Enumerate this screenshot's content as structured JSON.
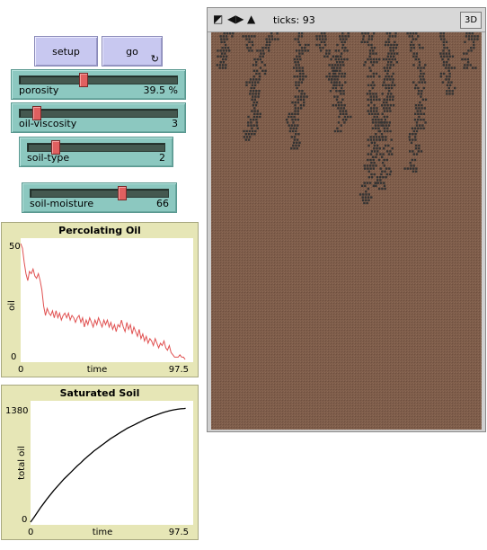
{
  "buttons": {
    "setup_label": "setup",
    "go_label": "go"
  },
  "sliders": [
    {
      "name": "porosity",
      "value_text": "39.5 %",
      "fraction": 0.4
    },
    {
      "name": "oil-viscosity",
      "value_text": "3",
      "fraction": 0.1
    },
    {
      "name": "soil-type",
      "value_text": "2",
      "fraction": 0.2
    },
    {
      "name": "soil-moisture",
      "value_text": "66",
      "fraction": 0.66
    }
  ],
  "plot1": {
    "title": "Percolating Oil",
    "ylabel": "oil",
    "xlabel": "time",
    "x_min_label": "0",
    "x_max_label": "97.5",
    "y_min_label": "0",
    "y_max_label": "50",
    "color": "#e05050"
  },
  "plot2": {
    "title": "Saturated Soil",
    "ylabel": "total oil",
    "xlabel": "time",
    "x_min_label": "0",
    "x_max_label": "97.5",
    "y_min_label": "0",
    "y_max_label": "1380",
    "color": "#000000"
  },
  "world": {
    "ticks_text": "ticks: 93",
    "btn_3d": "3D",
    "icons": [
      "resize-icon",
      "arrows-horizontal-icon",
      "arrows-vertical-icon"
    ],
    "soil_color": "#7a5a48",
    "oil_color": "#333333"
  },
  "chart_data": [
    {
      "type": "line",
      "title": "Percolating Oil",
      "xlabel": "time",
      "ylabel": "oil",
      "xlim": [
        0,
        97.5
      ],
      "ylim": [
        0,
        50
      ],
      "series": [
        {
          "values": [
            [
              0,
              52
            ],
            [
              1,
              48
            ],
            [
              2,
              42
            ],
            [
              3,
              37
            ],
            [
              4,
              34
            ],
            [
              5,
              38
            ],
            [
              6,
              37
            ],
            [
              7,
              39
            ],
            [
              8,
              36
            ],
            [
              9,
              35
            ],
            [
              10,
              37
            ],
            [
              11,
              34
            ],
            [
              12,
              30
            ],
            [
              13,
              23
            ],
            [
              14,
              19
            ],
            [
              15,
              22
            ],
            [
              16,
              20
            ],
            [
              17,
              19
            ],
            [
              18,
              21
            ],
            [
              19,
              18
            ],
            [
              20,
              21
            ],
            [
              21,
              18
            ],
            [
              22,
              20
            ],
            [
              23,
              17
            ],
            [
              24,
              19
            ],
            [
              25,
              20
            ],
            [
              26,
              18
            ],
            [
              27,
              20
            ],
            [
              28,
              17
            ],
            [
              29,
              19
            ],
            [
              30,
              18
            ],
            [
              31,
              16
            ],
            [
              32,
              18
            ],
            [
              33,
              19
            ],
            [
              34,
              16
            ],
            [
              35,
              18
            ],
            [
              36,
              14
            ],
            [
              37,
              17
            ],
            [
              38,
              15
            ],
            [
              39,
              18
            ],
            [
              40,
              16
            ],
            [
              41,
              14
            ],
            [
              42,
              17
            ],
            [
              43,
              15
            ],
            [
              44,
              18
            ],
            [
              45,
              16
            ],
            [
              46,
              14
            ],
            [
              47,
              17
            ],
            [
              48,
              15
            ],
            [
              49,
              17
            ],
            [
              50,
              14
            ],
            [
              51,
              16
            ],
            [
              52,
              13
            ],
            [
              53,
              15
            ],
            [
              54,
              12
            ],
            [
              55,
              15
            ],
            [
              56,
              14
            ],
            [
              57,
              17
            ],
            [
              58,
              14
            ],
            [
              59,
              12
            ],
            [
              60,
              16
            ],
            [
              61,
              13
            ],
            [
              62,
              15
            ],
            [
              63,
              11
            ],
            [
              64,
              14
            ],
            [
              65,
              12
            ],
            [
              66,
              10
            ],
            [
              67,
              13
            ],
            [
              68,
              9
            ],
            [
              69,
              11
            ],
            [
              70,
              8
            ],
            [
              71,
              10
            ],
            [
              72,
              7
            ],
            [
              73,
              9
            ],
            [
              74,
              8
            ],
            [
              75,
              6
            ],
            [
              76,
              9
            ],
            [
              77,
              7
            ],
            [
              78,
              5
            ],
            [
              79,
              7
            ],
            [
              80,
              6
            ],
            [
              81,
              8
            ],
            [
              82,
              5
            ],
            [
              83,
              4
            ],
            [
              84,
              6
            ],
            [
              85,
              3
            ],
            [
              86,
              2
            ],
            [
              87,
              1
            ],
            [
              88,
              1
            ],
            [
              89,
              1
            ],
            [
              90,
              2
            ],
            [
              91,
              1
            ],
            [
              92,
              1
            ],
            [
              93,
              0
            ]
          ]
        }
      ]
    },
    {
      "type": "line",
      "title": "Saturated Soil",
      "xlabel": "time",
      "ylabel": "total oil",
      "xlim": [
        0,
        97.5
      ],
      "ylim": [
        0,
        1380
      ],
      "series": [
        {
          "values": [
            [
              0,
              0
            ],
            [
              2,
              55
            ],
            [
              4,
              115
            ],
            [
              6,
              175
            ],
            [
              8,
              230
            ],
            [
              10,
              285
            ],
            [
              12,
              335
            ],
            [
              14,
              385
            ],
            [
              16,
              430
            ],
            [
              18,
              475
            ],
            [
              20,
              520
            ],
            [
              22,
              560
            ],
            [
              24,
              600
            ],
            [
              26,
              640
            ],
            [
              28,
              680
            ],
            [
              30,
              715
            ],
            [
              32,
              755
            ],
            [
              34,
              790
            ],
            [
              36,
              825
            ],
            [
              38,
              860
            ],
            [
              40,
              890
            ],
            [
              42,
              920
            ],
            [
              44,
              950
            ],
            [
              46,
              980
            ],
            [
              48,
              1010
            ],
            [
              50,
              1035
            ],
            [
              52,
              1060
            ],
            [
              54,
              1085
            ],
            [
              56,
              1110
            ],
            [
              58,
              1135
            ],
            [
              60,
              1155
            ],
            [
              62,
              1175
            ],
            [
              64,
              1195
            ],
            [
              66,
              1215
            ],
            [
              68,
              1235
            ],
            [
              70,
              1255
            ],
            [
              72,
              1270
            ],
            [
              74,
              1285
            ],
            [
              76,
              1300
            ],
            [
              78,
              1315
            ],
            [
              80,
              1328
            ],
            [
              82,
              1340
            ],
            [
              84,
              1350
            ],
            [
              86,
              1358
            ],
            [
              88,
              1365
            ],
            [
              90,
              1370
            ],
            [
              92,
              1374
            ],
            [
              93,
              1376
            ]
          ]
        }
      ]
    }
  ]
}
